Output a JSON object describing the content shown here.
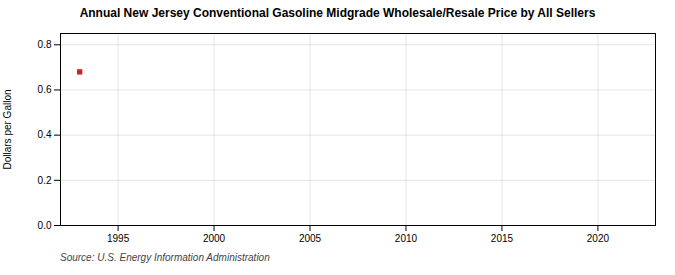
{
  "chart_data": {
    "type": "scatter",
    "title": "Annual New Jersey Conventional Gasoline Midgrade Wholesale/Resale Price by All Sellers",
    "ylabel": "Dollars per Gallon",
    "source": "Source: U.S. Energy Information Administration",
    "x": [
      1993
    ],
    "values": [
      0.68
    ],
    "color": "#cc2222",
    "marker": "square",
    "xlim": [
      1992,
      2023
    ],
    "xticks": [
      1995,
      2000,
      2005,
      2010,
      2015,
      2020
    ],
    "ylim": [
      0.0,
      0.85
    ],
    "yticks": [
      {
        "value": 0.0,
        "label": "0.0"
      },
      0.2,
      0.4,
      0.6,
      0.8
    ],
    "grid": true
  }
}
